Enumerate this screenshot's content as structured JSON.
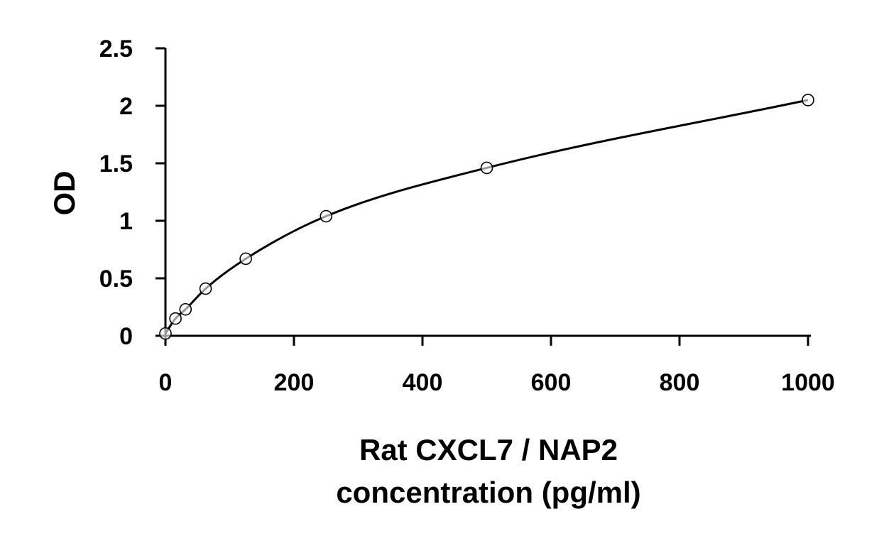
{
  "chart_data": {
    "type": "scatter",
    "title": "",
    "xlabel_lines": [
      "Rat CXCL7 / NAP2",
      "concentration (pg/ml)"
    ],
    "ylabel": "OD",
    "xlim": [
      0,
      1000
    ],
    "ylim": [
      0,
      2.5
    ],
    "xticks": [
      "0",
      "200",
      "400",
      "600",
      "800",
      "1000"
    ],
    "yticks": [
      "0",
      "0.5",
      "1",
      "1.5",
      "2",
      "2.5"
    ],
    "grid": false,
    "legend": "none",
    "series": [
      {
        "points": [
          {
            "x": 0,
            "y": 0.02
          },
          {
            "x": 15.6,
            "y": 0.15
          },
          {
            "x": 31.25,
            "y": 0.23
          },
          {
            "x": 62.5,
            "y": 0.41
          },
          {
            "x": 125,
            "y": 0.67
          },
          {
            "x": 250,
            "y": 1.04
          },
          {
            "x": 500,
            "y": 1.46
          },
          {
            "x": 1000,
            "y": 2.05
          }
        ],
        "marker": "open-circle",
        "fit": "smooth-curve",
        "color": "#000000"
      }
    ]
  }
}
